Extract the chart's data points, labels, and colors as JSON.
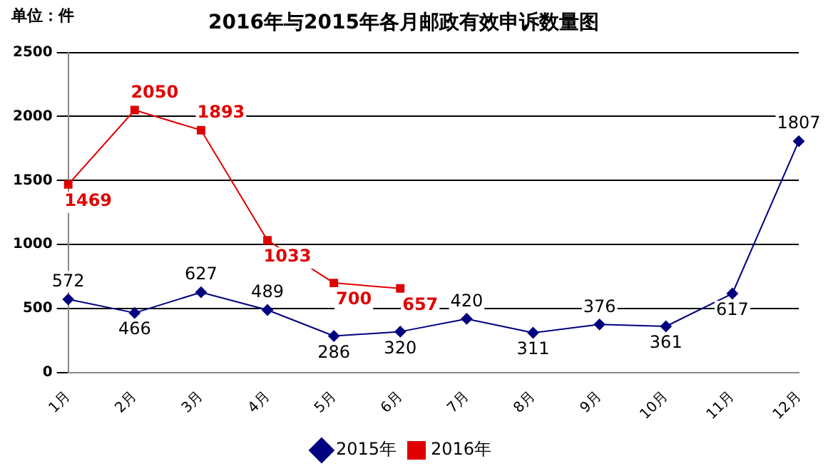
{
  "chart_data": {
    "type": "line",
    "title": "2016年与2015年各月邮政有效申诉数量图",
    "annotations": [
      "单位：件"
    ],
    "categories": [
      "1月",
      "2月",
      "3月",
      "4月",
      "5月",
      "6月",
      "7月",
      "8月",
      "9月",
      "10月",
      "11月",
      "12月"
    ],
    "series": [
      {
        "name": "2015年",
        "color": "#000080",
        "marker": "diamond",
        "values": [
          572,
          466,
          627,
          489,
          286,
          320,
          420,
          311,
          376,
          361,
          617,
          1807
        ]
      },
      {
        "name": "2016年",
        "color": "#e00000",
        "marker": "square",
        "values": [
          1469,
          2050,
          1893,
          1033,
          700,
          657,
          null,
          null,
          null,
          null,
          null,
          null
        ]
      }
    ],
    "ylim": [
      0,
      2500
    ],
    "yticks": [
      0,
      500,
      1000,
      1500,
      2000,
      2500
    ],
    "grid": "y",
    "legend": "bottom",
    "data_labels": true,
    "line_style": "solid"
  }
}
